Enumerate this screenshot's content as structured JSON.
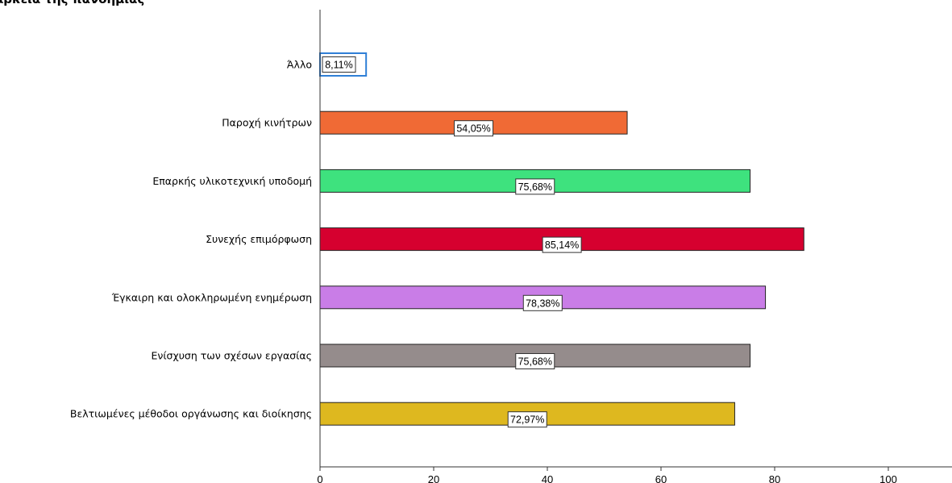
{
  "chart_data": {
    "type": "bar",
    "orientation": "horizontal",
    "title": "αρκεια της πανδημίας",
    "categories": [
      "Άλλο",
      "Παροχή κινήτρων",
      "Επαρκής υλικοτεχνική υποδομή",
      "Συνεχής επιμόρφωση",
      "Έγκαιρη και ολοκληρωμένη ενημέρωση",
      "Ενίσχυση των σχέσων εργασίας",
      "Βελτιωμένες μέθοδοι οργάνωσης και διοίκησης"
    ],
    "values": [
      8.11,
      54.05,
      75.68,
      85.14,
      78.38,
      75.68,
      72.97
    ],
    "data_labels": [
      "8,11%",
      "54,05%",
      "75,68%",
      "85,14%",
      "78,38%",
      "75,68%",
      "72,97%"
    ],
    "colors": [
      "#ffffff",
      "#f06a35",
      "#3ee27e",
      "#d6002f",
      "#c97de7",
      "#958c8c",
      "#deb81f"
    ],
    "highlight_outline": "#2f7fd6",
    "xlim": [
      0,
      110
    ],
    "xticks": [
      0,
      20,
      40,
      60,
      80,
      100
    ],
    "xlabel": "",
    "ylabel": "",
    "grid": false,
    "legend": "none"
  }
}
